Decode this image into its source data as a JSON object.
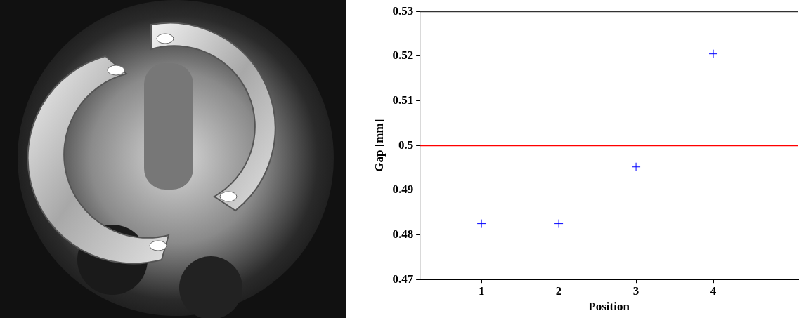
{
  "chart_data": {
    "type": "scatter",
    "x_label": "Position",
    "y_label": "Gap [mm]",
    "x": [
      1,
      2,
      3,
      4
    ],
    "values": [
      0.4825,
      0.4825,
      0.4952,
      0.5205
    ],
    "color": "#0000ff",
    "marker": "plus",
    "reference_line": {
      "value": 0.5,
      "color": "#ff0000"
    },
    "xlim": [
      0.2,
      5.1
    ],
    "xticks": [
      1,
      2,
      3,
      4
    ],
    "ylim": [
      0.47,
      0.53
    ],
    "yticks": [
      0.47,
      0.48,
      0.49,
      0.5,
      0.51,
      0.52,
      0.53
    ],
    "grid": false
  }
}
